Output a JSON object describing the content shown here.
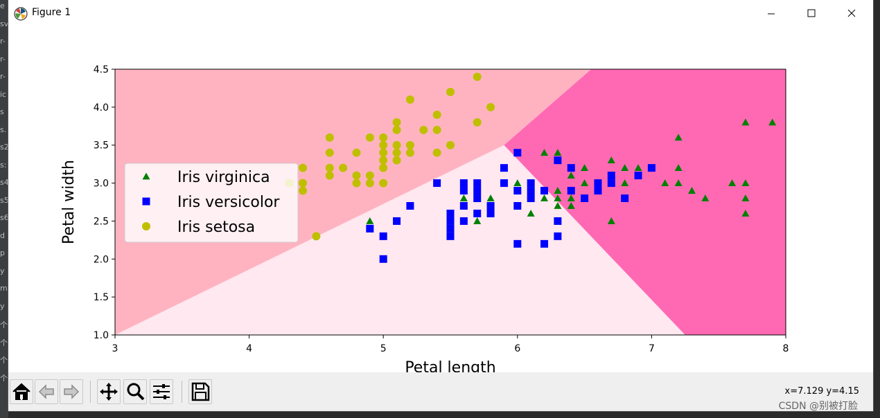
{
  "window": {
    "title": "Figure 1"
  },
  "side_strip": [
    "e",
    "sv",
    "r-",
    "r-",
    "r-",
    "ic",
    "s",
    "s.",
    "s2",
    "s:",
    "s4",
    "s5",
    "s6",
    "d",
    "p",
    "y",
    "m",
    "y",
    "个",
    "个",
    "个",
    "个"
  ],
  "toolbar": {
    "buttons": [
      {
        "name": "home-button",
        "icon": "home-icon"
      },
      {
        "name": "back-button",
        "icon": "arrow-left-icon"
      },
      {
        "name": "forward-button",
        "icon": "arrow-right-icon"
      },
      {
        "name": "pan-button",
        "icon": "move-icon"
      },
      {
        "name": "zoom-button",
        "icon": "zoom-icon"
      },
      {
        "name": "subplots-button",
        "icon": "sliders-icon"
      },
      {
        "name": "save-button",
        "icon": "save-icon"
      }
    ],
    "coords": "x=7.129 y=4.15",
    "watermark": "CSDN @别被打脸"
  },
  "chart_data": {
    "type": "scatter",
    "xlabel": "Petal length",
    "ylabel": "Petal width",
    "xlim": [
      3,
      8
    ],
    "ylim": [
      1.0,
      4.5
    ],
    "xticks": [
      "3",
      "4",
      "5",
      "6",
      "7",
      "8"
    ],
    "yticks": [
      "1.0",
      "1.5",
      "2.0",
      "2.5",
      "3.0",
      "3.5",
      "4.0",
      "4.5"
    ],
    "legend_position": "center-left",
    "regions": [
      {
        "name": "setosa-region",
        "color": "#ffb3c1",
        "polygon": [
          [
            3,
            1.0
          ],
          [
            3,
            4.5
          ],
          [
            6.55,
            4.5
          ],
          [
            5.9,
            3.5
          ]
        ]
      },
      {
        "name": "versicolor-region",
        "color": "#ffe8f0",
        "polygon": [
          [
            3,
            1.0
          ],
          [
            5.9,
            3.5
          ],
          [
            7.25,
            1.0
          ]
        ]
      },
      {
        "name": "virginica-region",
        "color": "#ff69b4",
        "polygon": [
          [
            6.55,
            4.5
          ],
          [
            8,
            4.5
          ],
          [
            8,
            1.0
          ],
          [
            7.25,
            1.0
          ],
          [
            5.9,
            3.5
          ]
        ]
      }
    ],
    "series": [
      {
        "name": "Iris virginica",
        "marker": "triangle",
        "color": "#008000",
        "points": [
          [
            4.9,
            2.5
          ],
          [
            5.6,
            2.8
          ],
          [
            5.7,
            2.5
          ],
          [
            5.8,
            2.8
          ],
          [
            6.0,
            3.0
          ],
          [
            6.1,
            2.6
          ],
          [
            6.2,
            2.8
          ],
          [
            6.2,
            3.4
          ],
          [
            6.3,
            3.4
          ],
          [
            6.3,
            3.3
          ],
          [
            6.3,
            2.9
          ],
          [
            6.3,
            2.8
          ],
          [
            6.3,
            2.7
          ],
          [
            6.4,
            3.2
          ],
          [
            6.4,
            3.1
          ],
          [
            6.4,
            2.8
          ],
          [
            6.4,
            2.7
          ],
          [
            6.5,
            3.2
          ],
          [
            6.5,
            3.0
          ],
          [
            6.7,
            3.3
          ],
          [
            6.7,
            3.1
          ],
          [
            6.7,
            3.0
          ],
          [
            6.7,
            2.5
          ],
          [
            6.8,
            3.2
          ],
          [
            6.8,
            3.0
          ],
          [
            6.9,
            3.2
          ],
          [
            6.9,
            3.1
          ],
          [
            7.1,
            3.0
          ],
          [
            7.2,
            3.6
          ],
          [
            7.2,
            3.2
          ],
          [
            7.2,
            3.0
          ],
          [
            7.3,
            2.9
          ],
          [
            7.4,
            2.8
          ],
          [
            7.6,
            3.0
          ],
          [
            7.7,
            3.8
          ],
          [
            7.7,
            3.0
          ],
          [
            7.7,
            2.8
          ],
          [
            7.7,
            2.6
          ],
          [
            7.9,
            3.8
          ]
        ]
      },
      {
        "name": "Iris versicolor",
        "marker": "square",
        "color": "#0000ff",
        "points": [
          [
            4.9,
            2.4
          ],
          [
            5.0,
            2.3
          ],
          [
            5.0,
            2.0
          ],
          [
            5.1,
            2.5
          ],
          [
            5.2,
            2.7
          ],
          [
            5.4,
            3.0
          ],
          [
            5.5,
            2.6
          ],
          [
            5.5,
            2.5
          ],
          [
            5.5,
            2.4
          ],
          [
            5.5,
            2.3
          ],
          [
            5.6,
            3.0
          ],
          [
            5.6,
            2.9
          ],
          [
            5.6,
            2.7
          ],
          [
            5.6,
            2.5
          ],
          [
            5.7,
            3.0
          ],
          [
            5.7,
            2.9
          ],
          [
            5.7,
            2.8
          ],
          [
            5.7,
            2.6
          ],
          [
            5.8,
            2.7
          ],
          [
            5.8,
            2.6
          ],
          [
            5.9,
            3.2
          ],
          [
            5.9,
            3.0
          ],
          [
            6.0,
            3.4
          ],
          [
            6.0,
            2.9
          ],
          [
            6.0,
            2.7
          ],
          [
            6.0,
            2.2
          ],
          [
            6.1,
            3.0
          ],
          [
            6.1,
            2.9
          ],
          [
            6.1,
            2.8
          ],
          [
            6.2,
            2.9
          ],
          [
            6.2,
            2.2
          ],
          [
            6.3,
            3.3
          ],
          [
            6.3,
            2.5
          ],
          [
            6.3,
            2.3
          ],
          [
            6.4,
            3.2
          ],
          [
            6.4,
            2.9
          ],
          [
            6.5,
            2.8
          ],
          [
            6.6,
            3.0
          ],
          [
            6.6,
            2.9
          ],
          [
            6.7,
            3.1
          ],
          [
            6.7,
            3.0
          ],
          [
            6.8,
            2.8
          ],
          [
            6.9,
            3.1
          ],
          [
            7.0,
            3.2
          ]
        ]
      },
      {
        "name": "Iris setosa",
        "marker": "circle",
        "color": "#bfbf00",
        "points": [
          [
            4.3,
            3.0
          ],
          [
            4.4,
            3.2
          ],
          [
            4.4,
            3.0
          ],
          [
            4.4,
            2.9
          ],
          [
            4.5,
            2.3
          ],
          [
            4.6,
            3.6
          ],
          [
            4.6,
            3.4
          ],
          [
            4.6,
            3.2
          ],
          [
            4.6,
            3.1
          ],
          [
            4.7,
            3.2
          ],
          [
            4.8,
            3.4
          ],
          [
            4.8,
            3.1
          ],
          [
            4.8,
            3.0
          ],
          [
            4.9,
            3.6
          ],
          [
            4.9,
            3.1
          ],
          [
            4.9,
            3.0
          ],
          [
            5.0,
            3.6
          ],
          [
            5.0,
            3.5
          ],
          [
            5.0,
            3.4
          ],
          [
            5.0,
            3.3
          ],
          [
            5.0,
            3.2
          ],
          [
            5.0,
            3.0
          ],
          [
            5.1,
            3.8
          ],
          [
            5.1,
            3.7
          ],
          [
            5.1,
            3.5
          ],
          [
            5.1,
            3.4
          ],
          [
            5.1,
            3.3
          ],
          [
            5.2,
            4.1
          ],
          [
            5.2,
            3.5
          ],
          [
            5.2,
            3.4
          ],
          [
            5.3,
            3.7
          ],
          [
            5.4,
            3.9
          ],
          [
            5.4,
            3.7
          ],
          [
            5.4,
            3.4
          ],
          [
            5.5,
            4.2
          ],
          [
            5.5,
            3.5
          ],
          [
            5.7,
            4.4
          ],
          [
            5.7,
            3.8
          ],
          [
            5.8,
            4.0
          ]
        ]
      }
    ]
  }
}
